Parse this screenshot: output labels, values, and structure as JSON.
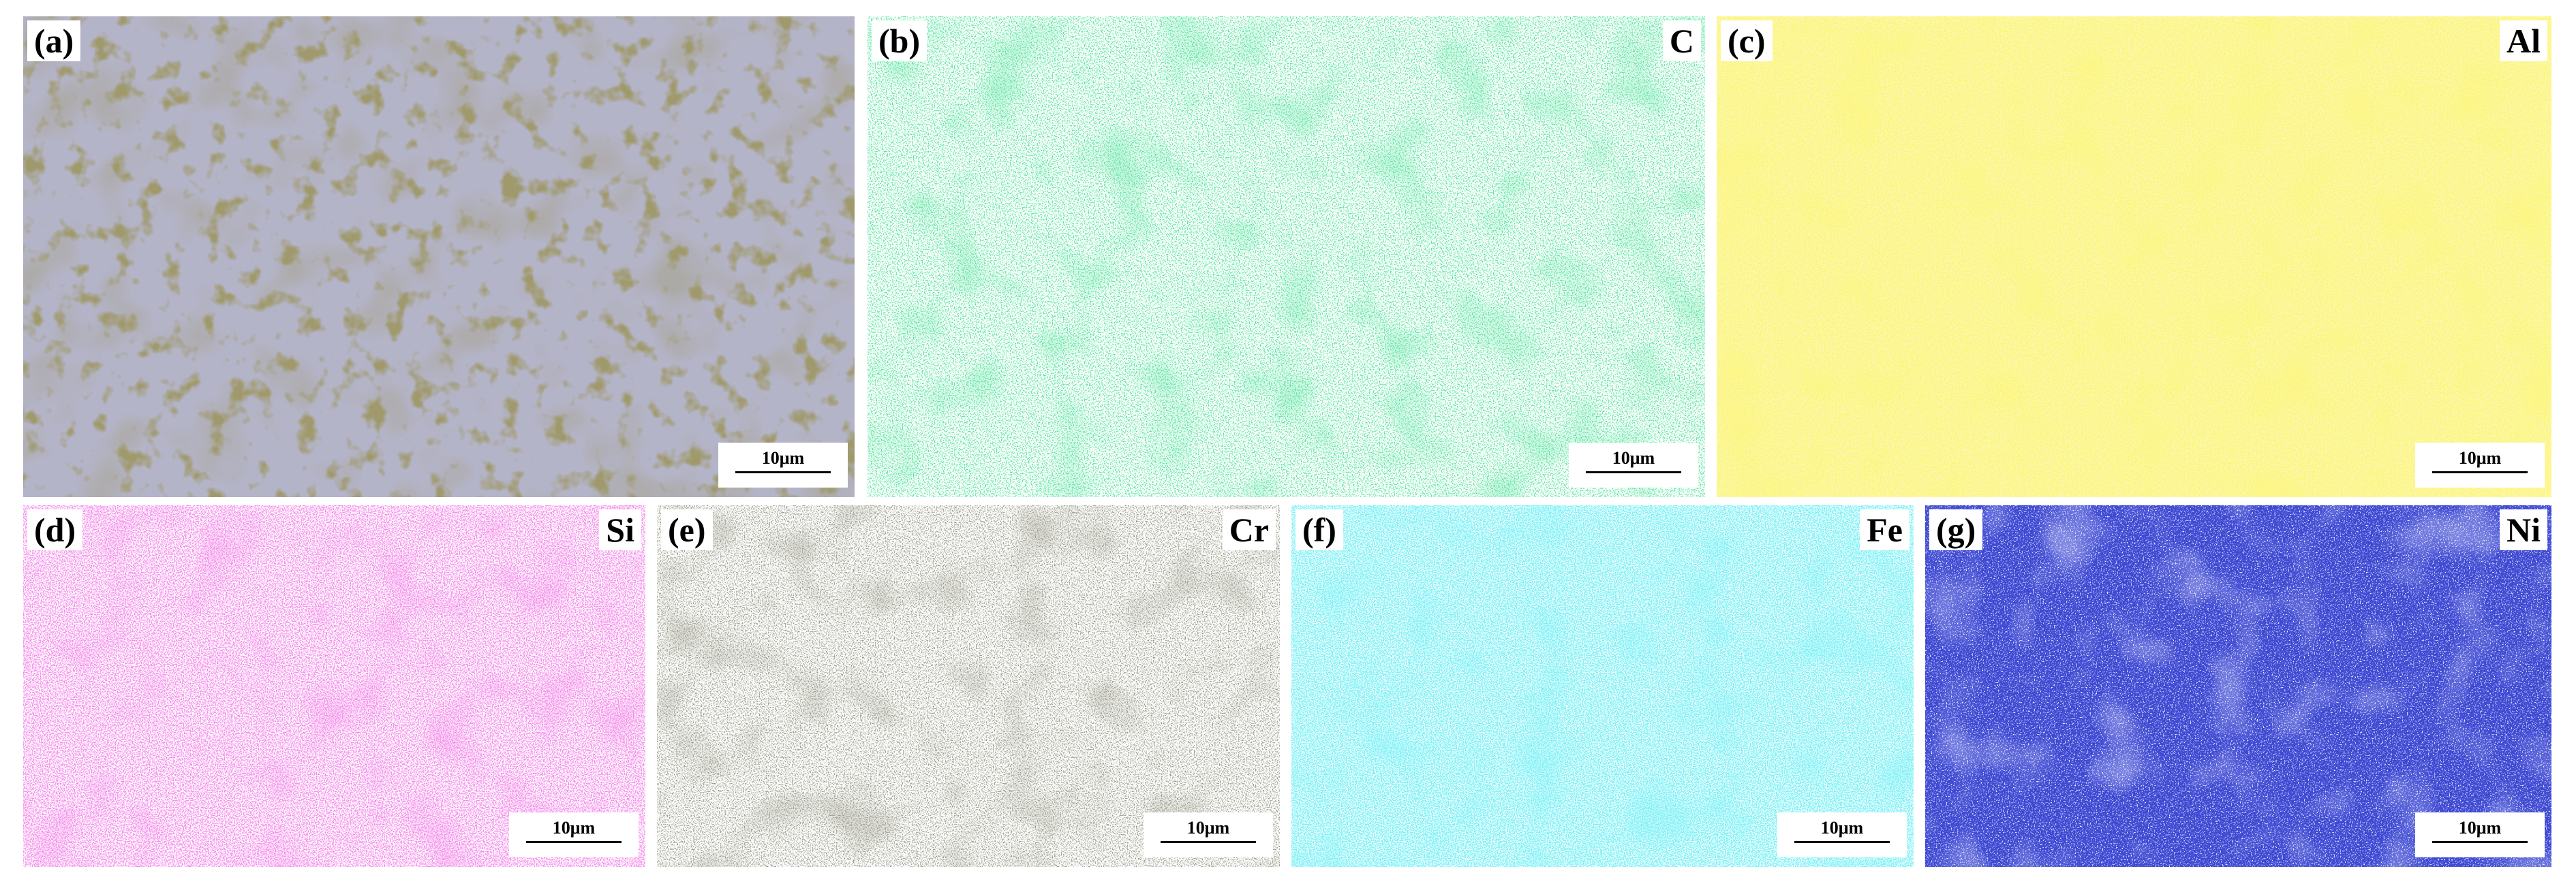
{
  "panels": [
    {
      "label": "(a)",
      "scale_bar": "10μm"
    },
    {
      "label": "(b)",
      "element": "C",
      "scale_bar": "10μm"
    },
    {
      "label": "(c)",
      "element": "Al",
      "scale_bar": "10μm"
    },
    {
      "label": "(d)",
      "element": "Si",
      "scale_bar": "10μm"
    },
    {
      "label": "(e)",
      "element": "Cr",
      "scale_bar": "10μm"
    },
    {
      "label": "(f)",
      "element": "Fe",
      "scale_bar": "10μm"
    },
    {
      "label": "(g)",
      "element": "Ni",
      "scale_bar": "10μm"
    }
  ]
}
